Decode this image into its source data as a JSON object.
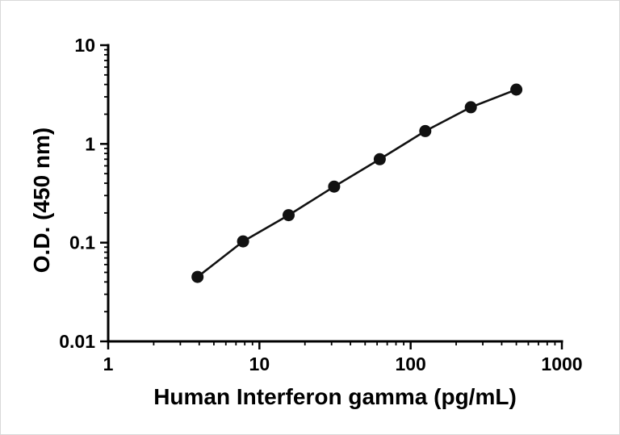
{
  "chart_data": {
    "type": "scatter",
    "xlabel": "Human Interferon gamma (pg/mL)",
    "ylabel": "O.D. (450 nm)",
    "xscale": "log",
    "yscale": "log",
    "xlim": [
      1,
      1000
    ],
    "ylim": [
      0.01,
      10
    ],
    "grid": false,
    "legend": false,
    "x": [
      3.9,
      7.8,
      15.6,
      31.2,
      62.5,
      125,
      250,
      500
    ],
    "y": [
      0.045,
      0.103,
      0.19,
      0.37,
      0.7,
      1.35,
      2.35,
      3.55
    ],
    "x_tick_values": [
      1,
      10,
      100,
      1000
    ],
    "x_tick_labels": [
      "1",
      "10",
      "100",
      "1000"
    ],
    "y_tick_values": [
      0.01,
      0.1,
      1,
      10
    ],
    "y_tick_labels": [
      "0.01",
      "0.1",
      "1",
      "10"
    ],
    "marker_color": "#111111",
    "line_color": "#111111",
    "axis_color": "#000000"
  }
}
